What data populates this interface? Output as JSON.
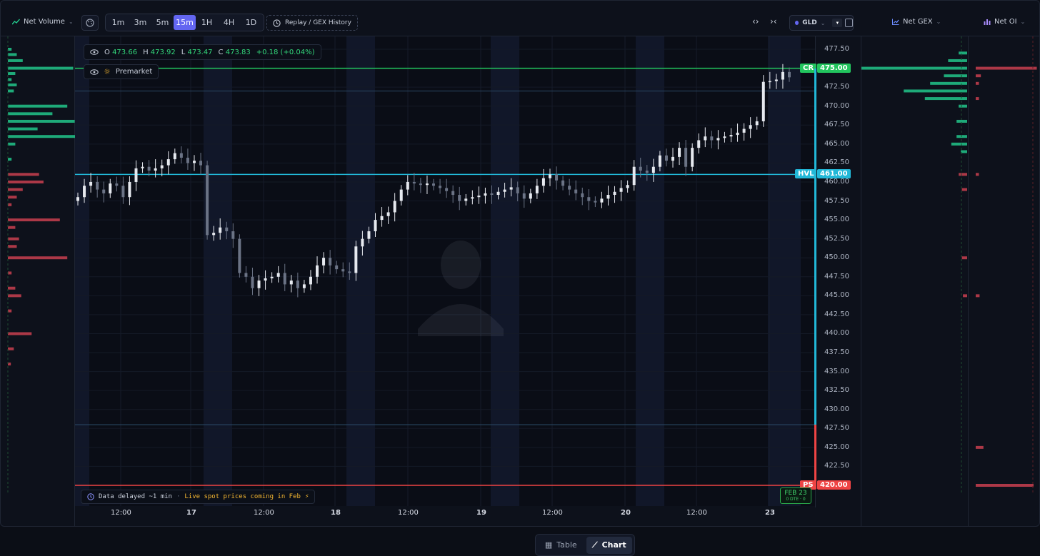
{
  "toolbar": {
    "net_volume_label": "Net Volume",
    "timeframes": [
      {
        "label": "1m",
        "active": false
      },
      {
        "label": "3m",
        "active": false
      },
      {
        "label": "5m",
        "active": false
      },
      {
        "label": "15m",
        "active": true
      },
      {
        "label": "1H",
        "active": false
      },
      {
        "label": "4H",
        "active": false
      },
      {
        "label": "1D",
        "active": false
      }
    ],
    "replay_label": "Replay / GEX History",
    "symbol": "GLD",
    "net_gex_label": "Net GEX",
    "net_oi_label": "Net OI"
  },
  "ohlc": {
    "o_label": "O",
    "o_value": "473.66",
    "h_label": "H",
    "h_value": "473.92",
    "l_label": "L",
    "l_value": "473.47",
    "c_label": "C",
    "c_value": "473.83",
    "change": "+0.18 (+0.04%)"
  },
  "premarket_label": "Premarket",
  "price_axis": {
    "ticks": [
      "477.50",
      "475.00",
      "472.50",
      "470.00",
      "467.50",
      "465.00",
      "462.50",
      "460.00",
      "457.50",
      "455.00",
      "452.50",
      "450.00",
      "447.50",
      "445.00",
      "442.50",
      "440.00",
      "437.50",
      "435.00",
      "432.50",
      "430.00",
      "427.50",
      "425.00",
      "422.50",
      "420.00"
    ],
    "min": 420,
    "max": 477.5
  },
  "levels": [
    {
      "tag": "CR",
      "value": "475.00",
      "color": "#22c55e"
    },
    {
      "tag": "HVL",
      "value": "461.00",
      "color": "#22b8d8"
    },
    {
      "tag": "PS",
      "value": "420.00",
      "color": "#ef4444"
    }
  ],
  "x_axis": [
    "12:00",
    "17",
    "12:00",
    "18",
    "12:00",
    "19",
    "12:00",
    "20",
    "12:00",
    "23"
  ],
  "delay_notice": {
    "text": "Data delayed ~1 min",
    "sep": "·",
    "coming": "Live spot prices coming in Feb",
    "bolt": "⚡"
  },
  "feb_badge": {
    "date": "FEB 23",
    "dte": "0 DTE · 0"
  },
  "bottom_tabs": [
    {
      "label": "Table",
      "active": false
    },
    {
      "label": "Chart",
      "active": true
    }
  ],
  "colors": {
    "up": "#e6e9ef",
    "down": "#6b7385",
    "green_bar": "#22c58a",
    "red_bar": "#c9404f",
    "accent": "#6366f1"
  },
  "chart_data": {
    "type": "candlestick",
    "symbol": "GLD",
    "interval": "15m",
    "candles_approx_close": [
      458,
      459.5,
      460,
      459,
      458.5,
      459.8,
      459.5,
      458,
      460,
      461.8,
      462,
      461.5,
      461.8,
      462.2,
      463,
      463.8,
      463.2,
      462.5,
      462.8,
      462.2,
      453,
      453.3,
      454,
      453.5,
      452.5,
      448,
      447.5,
      446,
      447,
      447.3,
      447.5,
      448,
      446.5,
      447,
      446,
      446.5,
      447.5,
      449,
      450,
      449,
      448.5,
      448.2,
      448,
      451.5,
      452.5,
      453.5,
      455,
      455.5,
      456,
      457.5,
      459,
      460,
      459.8,
      459.6,
      459.8,
      459.5,
      459.2,
      458.8,
      458.3,
      457.5,
      457.8,
      458,
      458.2,
      458.5,
      458.3,
      458.7,
      459,
      459.3,
      458.5,
      457.8,
      458.5,
      459.5,
      460.5,
      461,
      460.2,
      459.5,
      459,
      458.5,
      458,
      457.5,
      457.3,
      457.8,
      458.3,
      458.7,
      459.2,
      459.6,
      462,
      461.5,
      461.2,
      462,
      463.5,
      462.8,
      463.3,
      464.5,
      462,
      464.5,
      465.5,
      466,
      465.5,
      465.8,
      466,
      466.2,
      466.5,
      467,
      467.5,
      468,
      473.2,
      473.3,
      473.5,
      474.5,
      473.8
    ]
  }
}
